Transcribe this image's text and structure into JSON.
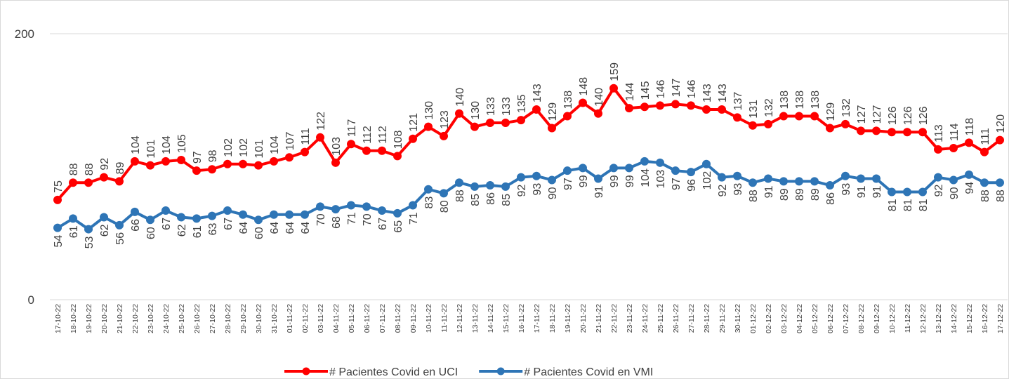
{
  "chart_data": {
    "type": "line",
    "categories": [
      "17-10-22",
      "18-10-22",
      "19-10-22",
      "20-10-22",
      "21-10-22",
      "22-10-22",
      "23-10-22",
      "24-10-22",
      "25-10-22",
      "26-10-22",
      "27-10-22",
      "28-10-22",
      "29-10-22",
      "30-10-22",
      "31-10-22",
      "01-11-22",
      "02-11-22",
      "03-11-22",
      "04-11-22",
      "05-11-22",
      "06-11-22",
      "07-11-22",
      "08-11-22",
      "09-11-22",
      "10-11-22",
      "11-11-22",
      "12-11-22",
      "13-11-22",
      "14-11-22",
      "15-11-22",
      "16-11-22",
      "17-11-22",
      "18-11-22",
      "19-11-22",
      "20-11-22",
      "21-11-22",
      "22-11-22",
      "23-11-22",
      "24-11-22",
      "25-11-22",
      "26-11-22",
      "27-11-22",
      "28-11-22",
      "29-11-22",
      "30-11-22",
      "01-12-22",
      "02-12-22",
      "03-12-22",
      "04-12-22",
      "05-12-22",
      "06-12-22",
      "07-12-22",
      "08-12-22",
      "09-12-22",
      "10-12-22",
      "11-12-22",
      "12-12-22",
      "13-12-22",
      "14-12-22",
      "15-12-22",
      "16-12-22",
      "17-12-22"
    ],
    "series": [
      {
        "name": "# Pacientes Covid en UCI",
        "color": "#ff0000",
        "values": [
          75,
          88,
          88,
          92,
          89,
          104,
          101,
          104,
          105,
          97,
          98,
          102,
          102,
          101,
          104,
          107,
          111,
          122,
          103,
          117,
          112,
          112,
          108,
          121,
          130,
          123,
          140,
          130,
          133,
          133,
          135,
          143,
          129,
          138,
          148,
          140,
          159,
          144,
          145,
          146,
          147,
          146,
          143,
          143,
          137,
          131,
          132,
          138,
          138,
          138,
          129,
          132,
          127,
          127,
          126,
          126,
          126,
          113,
          114,
          118,
          111,
          120
        ]
      },
      {
        "name": "# Pacientes Covid en VMI",
        "color": "#2e75b6",
        "values": [
          54,
          61,
          53,
          62,
          56,
          66,
          60,
          67,
          62,
          61,
          63,
          67,
          64,
          60,
          64,
          64,
          64,
          70,
          68,
          71,
          70,
          67,
          65,
          71,
          83,
          80,
          88,
          85,
          86,
          85,
          92,
          93,
          90,
          97,
          99,
          91,
          99,
          99,
          104,
          103,
          97,
          96,
          102,
          92,
          93,
          88,
          91,
          89,
          89,
          89,
          86,
          93,
          91,
          91,
          81,
          81,
          81,
          92,
          90,
          94,
          88,
          88
        ]
      }
    ],
    "ylim": [
      0,
      200
    ],
    "yticks": [
      0,
      200
    ],
    "grid": true
  }
}
